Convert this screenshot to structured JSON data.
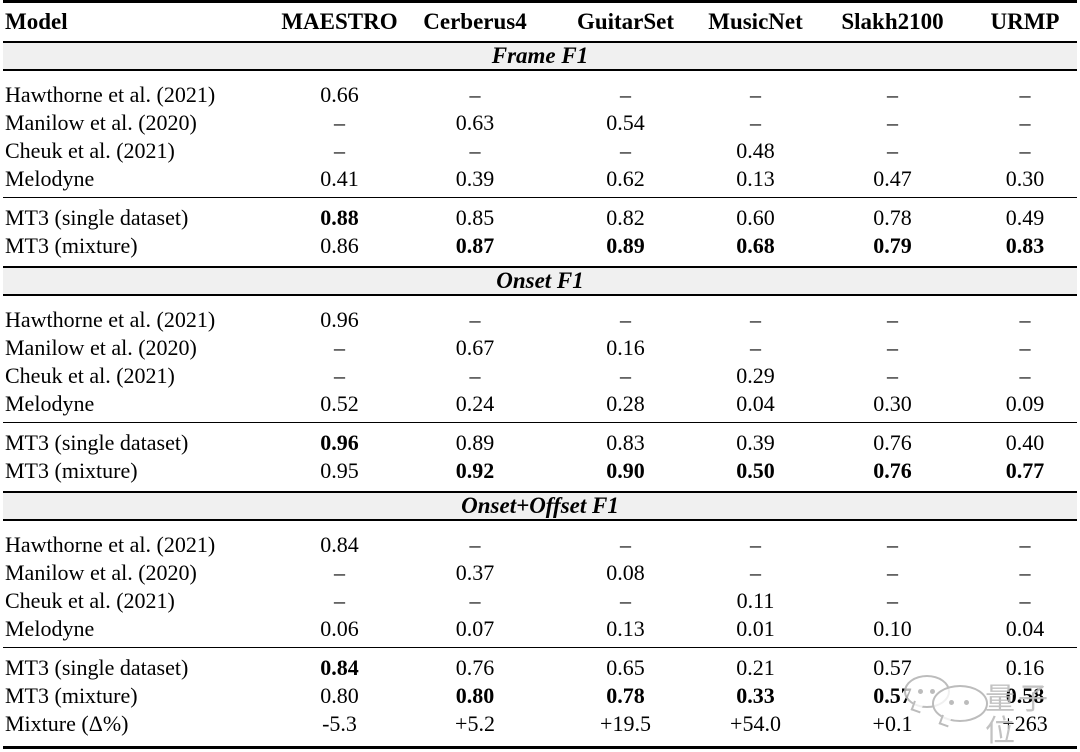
{
  "table": {
    "columns": [
      "Model",
      "MAESTRO",
      "Cerberus4",
      "GuitarSet",
      "MusicNet",
      "Slakh2100",
      "URMP"
    ],
    "sections": [
      {
        "title": "Frame F1",
        "rows": [
          {
            "model": "Hawthorne et al. (2021)",
            "values": [
              "0.66",
              "–",
              "–",
              "–",
              "–",
              "–"
            ],
            "bold": [
              false,
              false,
              false,
              false,
              false,
              false
            ]
          },
          {
            "model": "Manilow et al. (2020)",
            "values": [
              "–",
              "0.63",
              "0.54",
              "–",
              "–",
              "–"
            ],
            "bold": [
              false,
              false,
              false,
              false,
              false,
              false
            ]
          },
          {
            "model": "Cheuk et al. (2021)",
            "values": [
              "–",
              "–",
              "–",
              "0.48",
              "–",
              "–"
            ],
            "bold": [
              false,
              false,
              false,
              false,
              false,
              false
            ]
          },
          {
            "model": "Melodyne",
            "values": [
              "0.41",
              "0.39",
              "0.62",
              "0.13",
              "0.47",
              "0.30"
            ],
            "bold": [
              false,
              false,
              false,
              false,
              false,
              false
            ]
          },
          {
            "model": "MT3 (single dataset)",
            "values": [
              "0.88",
              "0.85",
              "0.82",
              "0.60",
              "0.78",
              "0.49"
            ],
            "bold": [
              true,
              false,
              false,
              false,
              false,
              false
            ]
          },
          {
            "model": "MT3 (mixture)",
            "values": [
              "0.86",
              "0.87",
              "0.89",
              "0.68",
              "0.79",
              "0.83"
            ],
            "bold": [
              false,
              true,
              true,
              true,
              true,
              true
            ]
          }
        ]
      },
      {
        "title": "Onset F1",
        "rows": [
          {
            "model": "Hawthorne et al. (2021)",
            "values": [
              "0.96",
              "–",
              "–",
              "–",
              "–",
              "–"
            ],
            "bold": [
              false,
              false,
              false,
              false,
              false,
              false
            ]
          },
          {
            "model": "Manilow et al. (2020)",
            "values": [
              "–",
              "0.67",
              "0.16",
              "–",
              "–",
              "–"
            ],
            "bold": [
              false,
              false,
              false,
              false,
              false,
              false
            ]
          },
          {
            "model": "Cheuk et al. (2021)",
            "values": [
              "–",
              "–",
              "–",
              "0.29",
              "–",
              "–"
            ],
            "bold": [
              false,
              false,
              false,
              false,
              false,
              false
            ]
          },
          {
            "model": "Melodyne",
            "values": [
              "0.52",
              "0.24",
              "0.28",
              "0.04",
              "0.30",
              "0.09"
            ],
            "bold": [
              false,
              false,
              false,
              false,
              false,
              false
            ]
          },
          {
            "model": "MT3 (single dataset)",
            "values": [
              "0.96",
              "0.89",
              "0.83",
              "0.39",
              "0.76",
              "0.40"
            ],
            "bold": [
              true,
              false,
              false,
              false,
              false,
              false
            ]
          },
          {
            "model": "MT3 (mixture)",
            "values": [
              "0.95",
              "0.92",
              "0.90",
              "0.50",
              "0.76",
              "0.77"
            ],
            "bold": [
              false,
              true,
              true,
              true,
              true,
              true
            ]
          }
        ]
      },
      {
        "title": "Onset+Offset F1",
        "rows": [
          {
            "model": "Hawthorne et al. (2021)",
            "values": [
              "0.84",
              "–",
              "–",
              "–",
              "–",
              "–"
            ],
            "bold": [
              false,
              false,
              false,
              false,
              false,
              false
            ]
          },
          {
            "model": "Manilow et al. (2020)",
            "values": [
              "–",
              "0.37",
              "0.08",
              "–",
              "–",
              "–"
            ],
            "bold": [
              false,
              false,
              false,
              false,
              false,
              false
            ]
          },
          {
            "model": "Cheuk et al. (2021)",
            "values": [
              "–",
              "–",
              "–",
              "0.11",
              "–",
              "–"
            ],
            "bold": [
              false,
              false,
              false,
              false,
              false,
              false
            ]
          },
          {
            "model": "Melodyne",
            "values": [
              "0.06",
              "0.07",
              "0.13",
              "0.01",
              "0.10",
              "0.04"
            ],
            "bold": [
              false,
              false,
              false,
              false,
              false,
              false
            ]
          },
          {
            "model": "MT3 (single dataset)",
            "values": [
              "0.84",
              "0.76",
              "0.65",
              "0.21",
              "0.57",
              "0.16"
            ],
            "bold": [
              true,
              false,
              false,
              false,
              false,
              false
            ]
          },
          {
            "model": "MT3 (mixture)",
            "values": [
              "0.80",
              "0.80",
              "0.78",
              "0.33",
              "0.57",
              "0.58"
            ],
            "bold": [
              false,
              true,
              true,
              true,
              true,
              true
            ]
          },
          {
            "model": "Mixture (Δ%)",
            "values": [
              "-5.3",
              "+5.2",
              "+19.5",
              "+54.0",
              "+0.1",
              "+263"
            ],
            "bold": [
              false,
              false,
              false,
              false,
              false,
              false
            ]
          }
        ]
      }
    ]
  },
  "watermark": {
    "text": "量子位"
  }
}
